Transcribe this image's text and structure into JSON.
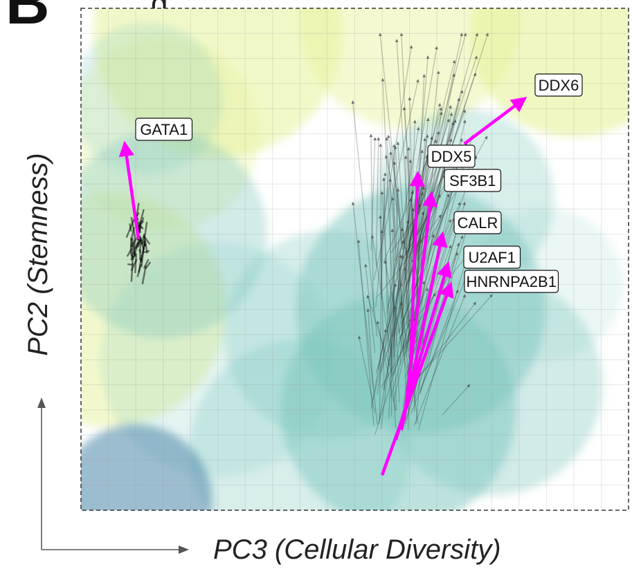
{
  "panel_label": "B",
  "panel_title_fragment": "g",
  "chart_data": {
    "type": "scatter",
    "subtype": "vector-field-with-density-background",
    "xlabel": "PC3 (Cellular Diversity)",
    "ylabel": "PC2 (Stemness)",
    "xlim": [
      0,
      100
    ],
    "ylim": [
      0,
      100
    ],
    "grid": true,
    "colors": {
      "highlight_arrow": "#ff00ff",
      "background_arrow": "#222222",
      "bg_yellow": "#e6f29a",
      "bg_teal": "#7cc6bd",
      "bg_blue": "#4a86a8",
      "frame": "#333333"
    },
    "highlighted_genes": [
      {
        "name": "GATA1",
        "from": [
          10.5,
          54
        ],
        "to": [
          8.0,
          73
        ]
      },
      {
        "name": "DDX6",
        "from": [
          70.0,
          73
        ],
        "to": [
          81.0,
          82
        ]
      },
      {
        "name": "DDX5",
        "from": [
          60.0,
          24
        ],
        "to": [
          61.5,
          67
        ]
      },
      {
        "name": "SF3B1",
        "from": [
          59.0,
          18
        ],
        "to": [
          64.0,
          63
        ]
      },
      {
        "name": "CALR",
        "from": [
          58.5,
          16
        ],
        "to": [
          66.0,
          55
        ]
      },
      {
        "name": "U2AF1",
        "from": [
          57.5,
          14
        ],
        "to": [
          67.0,
          49
        ]
      },
      {
        "name": "HNRNPA2B1",
        "from": [
          55.0,
          7
        ],
        "to": [
          67.5,
          45
        ]
      }
    ]
  }
}
